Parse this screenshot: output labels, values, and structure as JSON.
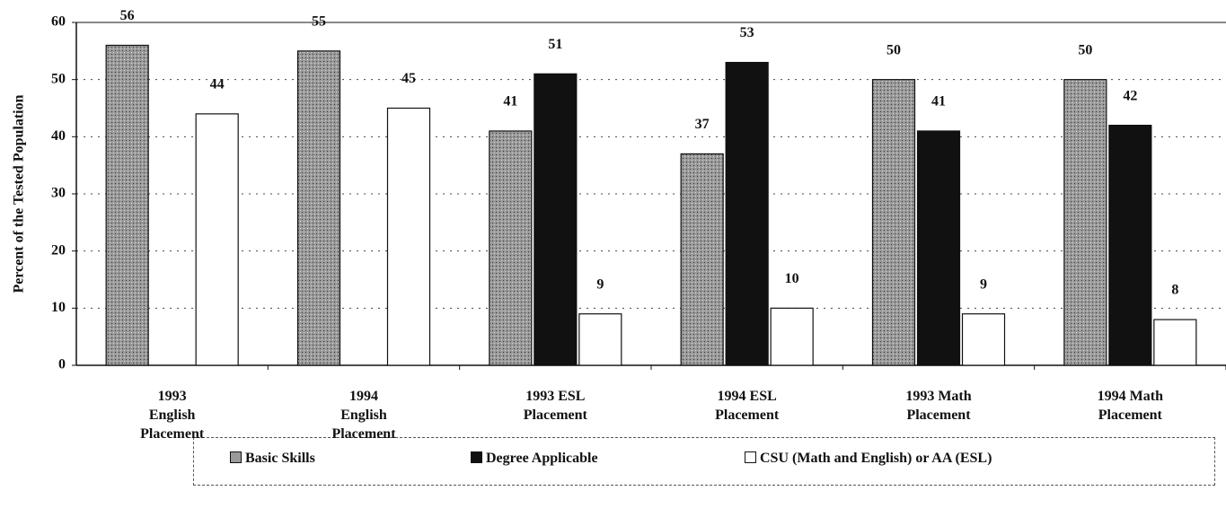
{
  "chart_data": {
    "type": "bar",
    "ylabel": "Percent of the Tested Population",
    "categories": [
      "1993\nEnglish\nPlacement",
      "1994\nEnglish\nPlacement",
      "1993 ESL\nPlacement",
      "1994 ESL\nPlacement",
      "1993 Math\nPlacement",
      "1994 Math\nPlacement"
    ],
    "series": [
      {
        "name": "Basic Skills",
        "color": "#8c8c8c",
        "values": [
          56,
          55,
          41,
          37,
          50,
          50
        ]
      },
      {
        "name": "Degree Applicable",
        "color": "#111111",
        "values": [
          null,
          null,
          51,
          53,
          41,
          42
        ]
      },
      {
        "name": "CSU (Math and English) or AA (ESL)",
        "color": "#ffffff",
        "values": [
          44,
          45,
          9,
          10,
          9,
          8
        ]
      }
    ],
    "ylim": [
      0,
      60
    ],
    "yticks": [
      0,
      10,
      20,
      30,
      40,
      50,
      60
    ],
    "grid": true
  }
}
